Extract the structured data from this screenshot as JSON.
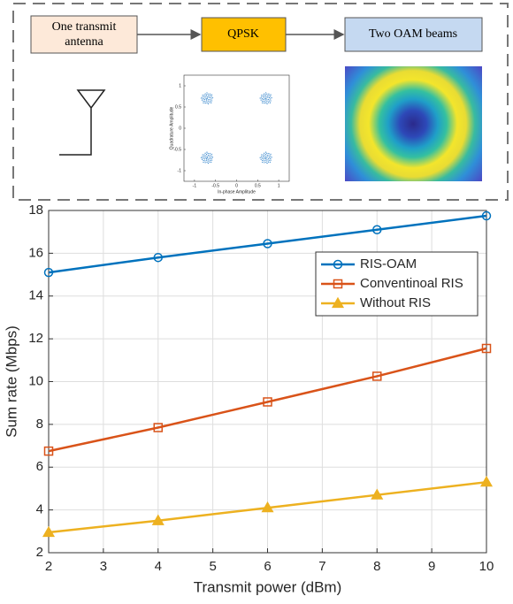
{
  "diagram": {
    "boxes": [
      "One transmit antenna",
      "QPSK",
      "Two OAM beams"
    ]
  },
  "chart_data": [
    {
      "type": "scatter",
      "xlabel": "In-phase Amplitude",
      "ylabel": "Quadrature Amplitude",
      "x": [
        -0.7,
        0.7,
        -0.7,
        0.7
      ],
      "values": [
        0.7,
        0.7,
        -0.7,
        -0.7
      ],
      "color": "#2a7fc9",
      "xlim": [
        -1.25,
        1.25
      ],
      "ylim": [
        -1.25,
        1.25
      ],
      "xticks": [
        -1,
        -0.5,
        0,
        0.5,
        1
      ],
      "yticks": [
        -1,
        -0.5,
        0,
        0.5,
        1
      ]
    },
    {
      "type": "line",
      "xlabel": "Transmit power (dBm)",
      "ylabel": "Sum rate (Mbps)",
      "x": [
        2,
        4,
        6,
        8,
        10
      ],
      "series": [
        {
          "name": "RIS-OAM",
          "color": "#0072bd",
          "marker": "circle",
          "values": [
            15.1,
            15.8,
            16.45,
            17.1,
            17.75
          ]
        },
        {
          "name": "Conventinoal RIS",
          "color": "#d95319",
          "marker": "square",
          "values": [
            6.75,
            7.85,
            9.05,
            10.25,
            11.55
          ]
        },
        {
          "name": "Without RIS",
          "color": "#edb120",
          "marker": "triangle",
          "values": [
            2.95,
            3.5,
            4.1,
            4.7,
            5.3
          ]
        }
      ],
      "xlim": [
        2,
        10
      ],
      "ylim": [
        2,
        18
      ],
      "xticks": [
        2,
        3,
        4,
        5,
        6,
        7,
        8,
        9,
        10
      ],
      "yticks": [
        2,
        4,
        6,
        8,
        10,
        12,
        14,
        16,
        18
      ],
      "grid": true,
      "legend": "upper right"
    }
  ]
}
